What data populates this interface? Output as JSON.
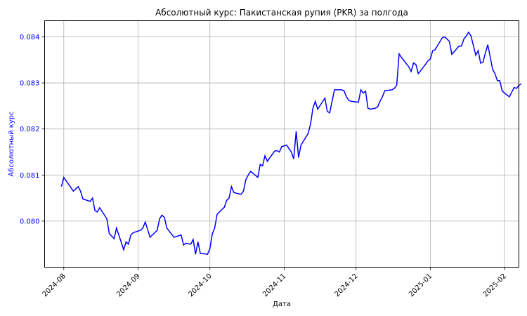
{
  "chart_data": {
    "type": "line",
    "title": "Абсолютный курс: Пакистанская рупия (PKR) за полгода",
    "xlabel": "Дата",
    "ylabel": "Абсолютный курс",
    "x_ticks": [
      "2024-08",
      "2024-09",
      "2024-10",
      "2024-11",
      "2024-12",
      "2025-01",
      "2025-02"
    ],
    "y_ticks": [
      "0.080",
      "0.081",
      "0.082",
      "0.083",
      "0.084"
    ],
    "xlim": [
      "2024-07-24",
      "2025-02-07"
    ],
    "ylim": [
      0.079,
      0.08435
    ],
    "grid": true,
    "line_color": "#0000ff",
    "series": [
      {
        "points": [
          [
            "2024-07-31",
            0.08075
          ],
          [
            "2024-08-01",
            0.08095
          ],
          [
            "2024-08-05",
            0.08065
          ],
          [
            "2024-08-07",
            0.08075
          ],
          [
            "2024-08-08",
            0.08065
          ],
          [
            "2024-08-09",
            0.08048
          ],
          [
            "2024-08-12",
            0.08043
          ],
          [
            "2024-08-13",
            0.0805
          ],
          [
            "2024-08-14",
            0.08023
          ],
          [
            "2024-08-15",
            0.0802
          ],
          [
            "2024-08-16",
            0.08029
          ],
          [
            "2024-08-19",
            0.08005
          ],
          [
            "2024-08-20",
            0.07973
          ],
          [
            "2024-08-22",
            0.07962
          ],
          [
            "2024-08-23",
            0.07985
          ],
          [
            "2024-08-26",
            0.07938
          ],
          [
            "2024-08-27",
            0.07955
          ],
          [
            "2024-08-28",
            0.0795
          ],
          [
            "2024-08-29",
            0.0797
          ],
          [
            "2024-08-30",
            0.07975
          ],
          [
            "2024-09-02",
            0.0798
          ],
          [
            "2024-09-03",
            0.07985
          ],
          [
            "2024-09-04",
            0.07998
          ],
          [
            "2024-09-05",
            0.07982
          ],
          [
            "2024-09-06",
            0.07965
          ],
          [
            "2024-09-09",
            0.0798
          ],
          [
            "2024-09-10",
            0.08005
          ],
          [
            "2024-09-11",
            0.08013
          ],
          [
            "2024-09-12",
            0.08008
          ],
          [
            "2024-09-13",
            0.07985
          ],
          [
            "2024-09-16",
            0.07965
          ],
          [
            "2024-09-19",
            0.0797
          ],
          [
            "2024-09-20",
            0.07948
          ],
          [
            "2024-09-21",
            0.07952
          ],
          [
            "2024-09-23",
            0.0795
          ],
          [
            "2024-09-24",
            0.0796
          ],
          [
            "2024-09-25",
            0.07928
          ],
          [
            "2024-09-26",
            0.07955
          ],
          [
            "2024-09-27",
            0.0793
          ],
          [
            "2024-09-30",
            0.07928
          ],
          [
            "2024-10-01",
            0.0794
          ],
          [
            "2024-10-02",
            0.07972
          ],
          [
            "2024-10-03",
            0.07985
          ],
          [
            "2024-10-04",
            0.08015
          ],
          [
            "2024-10-07",
            0.0803
          ],
          [
            "2024-10-08",
            0.08045
          ],
          [
            "2024-10-09",
            0.0805
          ],
          [
            "2024-10-10",
            0.08075
          ],
          [
            "2024-10-11",
            0.08062
          ],
          [
            "2024-10-14",
            0.08058
          ],
          [
            "2024-10-15",
            0.08065
          ],
          [
            "2024-10-16",
            0.0809
          ],
          [
            "2024-10-17",
            0.081
          ],
          [
            "2024-10-18",
            0.08108
          ],
          [
            "2024-10-21",
            0.08095
          ],
          [
            "2024-10-22",
            0.08123
          ],
          [
            "2024-10-23",
            0.0812
          ],
          [
            "2024-10-24",
            0.08142
          ],
          [
            "2024-10-25",
            0.0813
          ],
          [
            "2024-10-28",
            0.08152
          ],
          [
            "2024-10-29",
            0.08153
          ],
          [
            "2024-10-30",
            0.0815
          ],
          [
            "2024-10-31",
            0.08162
          ],
          [
            "2024-11-01",
            0.08163
          ],
          [
            "2024-11-02",
            0.08165
          ],
          [
            "2024-11-04",
            0.0815
          ],
          [
            "2024-11-05",
            0.08135
          ],
          [
            "2024-11-06",
            0.08195
          ],
          [
            "2024-11-07",
            0.08138
          ],
          [
            "2024-11-08",
            0.08165
          ],
          [
            "2024-11-11",
            0.0819
          ],
          [
            "2024-11-12",
            0.0821
          ],
          [
            "2024-11-13",
            0.08245
          ],
          [
            "2024-11-14",
            0.0826
          ],
          [
            "2024-11-15",
            0.08243
          ],
          [
            "2024-11-18",
            0.08267
          ],
          [
            "2024-11-19",
            0.08238
          ],
          [
            "2024-11-20",
            0.08235
          ],
          [
            "2024-11-21",
            0.0826
          ],
          [
            "2024-11-22",
            0.08285
          ],
          [
            "2024-11-25",
            0.08285
          ],
          [
            "2024-11-26",
            0.08283
          ],
          [
            "2024-11-27",
            0.0827
          ],
          [
            "2024-11-28",
            0.08262
          ],
          [
            "2024-11-29",
            0.0826
          ],
          [
            "2024-12-02",
            0.08258
          ],
          [
            "2024-12-03",
            0.08285
          ],
          [
            "2024-12-04",
            0.08278
          ],
          [
            "2024-12-05",
            0.08282
          ],
          [
            "2024-12-06",
            0.08245
          ],
          [
            "2024-12-07",
            0.08243
          ],
          [
            "2024-12-09",
            0.08245
          ],
          [
            "2024-12-10",
            0.08248
          ],
          [
            "2024-12-11",
            0.0826
          ],
          [
            "2024-12-12",
            0.0827
          ],
          [
            "2024-12-13",
            0.08283
          ],
          [
            "2024-12-16",
            0.08285
          ],
          [
            "2024-12-17",
            0.08288
          ],
          [
            "2024-12-18",
            0.08295
          ],
          [
            "2024-12-19",
            0.08363
          ],
          [
            "2024-12-20",
            0.08355
          ],
          [
            "2024-12-23",
            0.08335
          ],
          [
            "2024-12-24",
            0.08325
          ],
          [
            "2024-12-25",
            0.08343
          ],
          [
            "2024-12-26",
            0.0834
          ],
          [
            "2024-12-27",
            0.0832
          ],
          [
            "2024-12-30",
            0.0834
          ],
          [
            "2024-12-31",
            0.08348
          ],
          [
            "2025-01-01",
            0.08352
          ],
          [
            "2025-01-02",
            0.0837
          ],
          [
            "2025-01-03",
            0.08372
          ],
          [
            "2025-01-06",
            0.08398
          ],
          [
            "2025-01-07",
            0.084
          ],
          [
            "2025-01-08",
            0.08395
          ],
          [
            "2025-01-09",
            0.0839
          ],
          [
            "2025-01-10",
            0.08362
          ],
          [
            "2025-01-13",
            0.0838
          ],
          [
            "2025-01-14",
            0.0838
          ],
          [
            "2025-01-15",
            0.08395
          ],
          [
            "2025-01-16",
            0.08402
          ],
          [
            "2025-01-17",
            0.0841
          ],
          [
            "2025-01-18",
            0.08402
          ],
          [
            "2025-01-20",
            0.0836
          ],
          [
            "2025-01-21",
            0.0837
          ],
          [
            "2025-01-22",
            0.08343
          ],
          [
            "2025-01-23",
            0.08345
          ],
          [
            "2025-01-24",
            0.08365
          ],
          [
            "2025-01-25",
            0.08383
          ],
          [
            "2025-01-27",
            0.0833
          ],
          [
            "2025-01-28",
            0.0832
          ],
          [
            "2025-01-29",
            0.08305
          ],
          [
            "2025-01-30",
            0.08305
          ],
          [
            "2025-01-31",
            0.08283
          ],
          [
            "2025-02-01",
            0.08278
          ],
          [
            "2025-02-03",
            0.0827
          ],
          [
            "2025-02-04",
            0.0828
          ],
          [
            "2025-02-05",
            0.0829
          ],
          [
            "2025-02-06",
            0.08288
          ],
          [
            "2025-02-07",
            0.08295
          ],
          [
            "2025-02-08",
            0.08298
          ]
        ]
      }
    ]
  }
}
